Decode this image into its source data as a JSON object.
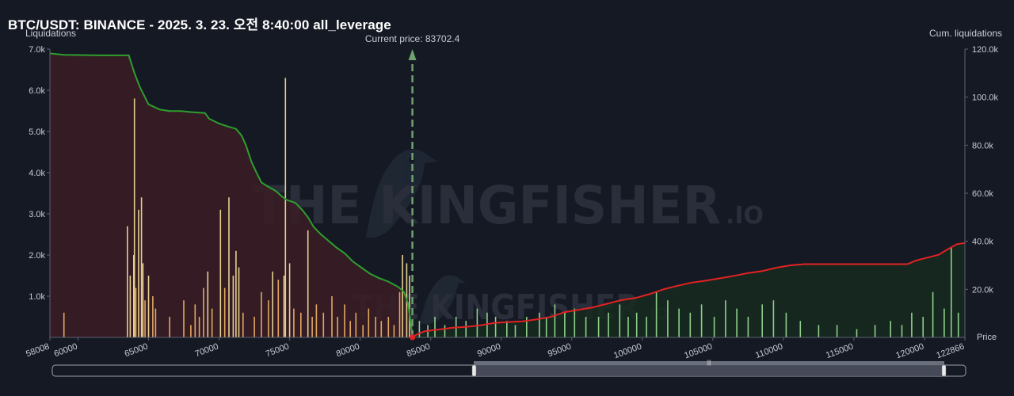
{
  "header": {
    "title": "BTC/USDT: BINANCE - 2025. 3. 23. 오전 8:40:00 all_leverage"
  },
  "watermark": {
    "brand": "THE KINGFISHER",
    "suffix": ".IO"
  },
  "colors": {
    "background": "#151924",
    "long_fill": "#3a1c24",
    "short_fill": "#162a20",
    "long_line": "#2e9e2e",
    "short_line": "#e32222",
    "bar_orange": "#e0a860",
    "bar_green": "#8fcf8a",
    "current_price_line": "#6ea26e"
  },
  "chart_data": {
    "type": "bar",
    "title": "BTC/USDT: BINANCE - 2025. 3. 23. 오전 8:40:00 all_leverage",
    "xlabel": "Price",
    "ylabel_left": "Liquidations",
    "ylabel_right": "Cum. liquidations",
    "xlim": [
      58008,
      122866
    ],
    "ylim_left": [
      0,
      7000
    ],
    "ylim_right": [
      0,
      120000
    ],
    "x_ticks": [
      "58008",
      "60000",
      "65000",
      "70000",
      "75000",
      "80000",
      "85000",
      "90000",
      "95000",
      "100000",
      "105000",
      "110000",
      "115000",
      "120000",
      "122866"
    ],
    "y_left_ticks": [
      "1.0k",
      "2.0k",
      "3.0k",
      "4.0k",
      "5.0k",
      "6.0k",
      "7.0k"
    ],
    "y_right_ticks": [
      "20.0k",
      "40.0k",
      "60.0k",
      "80.0k",
      "100.0k",
      "120.0k"
    ],
    "current_price_label": "Current price: 83702.4",
    "current_price": 83702.4,
    "long_liquidation_bars": [
      {
        "x": 59000,
        "v": 600
      },
      {
        "x": 63500,
        "v": 2700
      },
      {
        "x": 63700,
        "v": 1500
      },
      {
        "x": 63950,
        "v": 2000
      },
      {
        "x": 64000,
        "v": 5800
      },
      {
        "x": 64100,
        "v": 1200
      },
      {
        "x": 64300,
        "v": 3100
      },
      {
        "x": 64500,
        "v": 3400
      },
      {
        "x": 64600,
        "v": 1800
      },
      {
        "x": 64750,
        "v": 900
      },
      {
        "x": 65000,
        "v": 1500
      },
      {
        "x": 65300,
        "v": 1000
      },
      {
        "x": 65500,
        "v": 700
      },
      {
        "x": 66500,
        "v": 500
      },
      {
        "x": 67500,
        "v": 900
      },
      {
        "x": 68000,
        "v": 300
      },
      {
        "x": 68300,
        "v": 800
      },
      {
        "x": 68600,
        "v": 500
      },
      {
        "x": 68900,
        "v": 1200
      },
      {
        "x": 69200,
        "v": 1600
      },
      {
        "x": 69500,
        "v": 700
      },
      {
        "x": 70100,
        "v": 3100
      },
      {
        "x": 70400,
        "v": 1200
      },
      {
        "x": 70700,
        "v": 3400
      },
      {
        "x": 71000,
        "v": 1500
      },
      {
        "x": 71200,
        "v": 2100
      },
      {
        "x": 71400,
        "v": 1700
      },
      {
        "x": 71700,
        "v": 600
      },
      {
        "x": 72500,
        "v": 500
      },
      {
        "x": 73000,
        "v": 1100
      },
      {
        "x": 73500,
        "v": 900
      },
      {
        "x": 73800,
        "v": 1600
      },
      {
        "x": 74200,
        "v": 1400
      },
      {
        "x": 74600,
        "v": 1500
      },
      {
        "x": 74700,
        "v": 6300
      },
      {
        "x": 75000,
        "v": 1800
      },
      {
        "x": 75300,
        "v": 700
      },
      {
        "x": 75800,
        "v": 600
      },
      {
        "x": 76300,
        "v": 2600
      },
      {
        "x": 76600,
        "v": 500
      },
      {
        "x": 76900,
        "v": 800
      },
      {
        "x": 77400,
        "v": 600
      },
      {
        "x": 78000,
        "v": 1000
      },
      {
        "x": 78400,
        "v": 500
      },
      {
        "x": 78900,
        "v": 800
      },
      {
        "x": 79300,
        "v": 400
      },
      {
        "x": 79700,
        "v": 600
      },
      {
        "x": 80200,
        "v": 300
      },
      {
        "x": 80600,
        "v": 700
      },
      {
        "x": 81100,
        "v": 500
      },
      {
        "x": 81500,
        "v": 400
      },
      {
        "x": 82000,
        "v": 500
      },
      {
        "x": 82400,
        "v": 300
      },
      {
        "x": 82800,
        "v": 1100
      },
      {
        "x": 83000,
        "v": 2000
      },
      {
        "x": 83300,
        "v": 1800
      },
      {
        "x": 83500,
        "v": 1500
      }
    ],
    "short_liquidation_bars": [
      {
        "x": 84200,
        "v": 400
      },
      {
        "x": 84800,
        "v": 300
      },
      {
        "x": 85300,
        "v": 500
      },
      {
        "x": 86000,
        "v": 300
      },
      {
        "x": 86800,
        "v": 500
      },
      {
        "x": 87500,
        "v": 400
      },
      {
        "x": 88300,
        "v": 700
      },
      {
        "x": 89000,
        "v": 600
      },
      {
        "x": 89600,
        "v": 500
      },
      {
        "x": 90400,
        "v": 400
      },
      {
        "x": 91000,
        "v": 300
      },
      {
        "x": 91800,
        "v": 500
      },
      {
        "x": 92700,
        "v": 600
      },
      {
        "x": 93200,
        "v": 500
      },
      {
        "x": 93800,
        "v": 800
      },
      {
        "x": 94500,
        "v": 600
      },
      {
        "x": 95200,
        "v": 700
      },
      {
        "x": 96000,
        "v": 500
      },
      {
        "x": 96900,
        "v": 500
      },
      {
        "x": 97600,
        "v": 600
      },
      {
        "x": 98400,
        "v": 800
      },
      {
        "x": 99000,
        "v": 500
      },
      {
        "x": 99600,
        "v": 600
      },
      {
        "x": 100300,
        "v": 500
      },
      {
        "x": 101000,
        "v": 1100
      },
      {
        "x": 101800,
        "v": 900
      },
      {
        "x": 102600,
        "v": 700
      },
      {
        "x": 103400,
        "v": 600
      },
      {
        "x": 104200,
        "v": 800
      },
      {
        "x": 105100,
        "v": 500
      },
      {
        "x": 105900,
        "v": 900
      },
      {
        "x": 106700,
        "v": 700
      },
      {
        "x": 107500,
        "v": 500
      },
      {
        "x": 108500,
        "v": 800
      },
      {
        "x": 109300,
        "v": 900
      },
      {
        "x": 110200,
        "v": 600
      },
      {
        "x": 111200,
        "v": 400
      },
      {
        "x": 112500,
        "v": 300
      },
      {
        "x": 113800,
        "v": 300
      },
      {
        "x": 115200,
        "v": 200
      },
      {
        "x": 116500,
        "v": 300
      },
      {
        "x": 117600,
        "v": 400
      },
      {
        "x": 118400,
        "v": 300
      },
      {
        "x": 119100,
        "v": 600
      },
      {
        "x": 119900,
        "v": 500
      },
      {
        "x": 120600,
        "v": 1100
      },
      {
        "x": 121400,
        "v": 700
      },
      {
        "x": 121900,
        "v": 2200
      },
      {
        "x": 122400,
        "v": 600
      }
    ],
    "cum_long_liquidations": [
      [
        58008,
        118200
      ],
      [
        59000,
        117600
      ],
      [
        62000,
        117400
      ],
      [
        63600,
        117400
      ],
      [
        64000,
        110000
      ],
      [
        64400,
        104000
      ],
      [
        65000,
        97000
      ],
      [
        65800,
        94800
      ],
      [
        66500,
        94200
      ],
      [
        67300,
        94200
      ],
      [
        68000,
        93800
      ],
      [
        69000,
        93400
      ],
      [
        69300,
        91000
      ],
      [
        70000,
        89000
      ],
      [
        70500,
        88000
      ],
      [
        71200,
        86800
      ],
      [
        71600,
        84000
      ],
      [
        71900,
        80000
      ],
      [
        72300,
        73000
      ],
      [
        72700,
        68000
      ],
      [
        73000,
        64500
      ],
      [
        73400,
        63000
      ],
      [
        74000,
        61000
      ],
      [
        74500,
        58500
      ],
      [
        74800,
        57200
      ],
      [
        75400,
        56000
      ],
      [
        75900,
        53000
      ],
      [
        76300,
        50000
      ],
      [
        76700,
        46000
      ],
      [
        77200,
        43000
      ],
      [
        77800,
        40000
      ],
      [
        78300,
        37500
      ],
      [
        78900,
        35000
      ],
      [
        79500,
        31500
      ],
      [
        80100,
        29000
      ],
      [
        80700,
        26500
      ],
      [
        81300,
        24800
      ],
      [
        82000,
        23200
      ],
      [
        82700,
        21000
      ],
      [
        83100,
        19000
      ],
      [
        83400,
        14000
      ],
      [
        83702,
        1000
      ]
    ],
    "cum_short_liquidations": [
      [
        83702,
        0
      ],
      [
        84000,
        1200
      ],
      [
        84600,
        2600
      ],
      [
        85500,
        3200
      ],
      [
        86500,
        4000
      ],
      [
        87500,
        4400
      ],
      [
        88500,
        5000
      ],
      [
        89500,
        6000
      ],
      [
        90500,
        6400
      ],
      [
        91500,
        6700
      ],
      [
        92500,
        7500
      ],
      [
        93500,
        8500
      ],
      [
        94500,
        10500
      ],
      [
        95500,
        11500
      ],
      [
        96500,
        12500
      ],
      [
        97500,
        14000
      ],
      [
        98500,
        15500
      ],
      [
        99500,
        16400
      ],
      [
        100500,
        18000
      ],
      [
        101500,
        20000
      ],
      [
        102500,
        21500
      ],
      [
        103500,
        22800
      ],
      [
        104500,
        23600
      ],
      [
        105500,
        24600
      ],
      [
        106500,
        25600
      ],
      [
        107500,
        26800
      ],
      [
        108500,
        27600
      ],
      [
        109500,
        29000
      ],
      [
        110500,
        30000
      ],
      [
        111500,
        30500
      ],
      [
        113000,
        30500
      ],
      [
        115000,
        30500
      ],
      [
        117000,
        30500
      ],
      [
        118800,
        30500
      ],
      [
        119400,
        32000
      ],
      [
        120200,
        33200
      ],
      [
        121000,
        34400
      ],
      [
        121600,
        36500
      ],
      [
        122300,
        38800
      ],
      [
        122866,
        39300
      ]
    ]
  }
}
